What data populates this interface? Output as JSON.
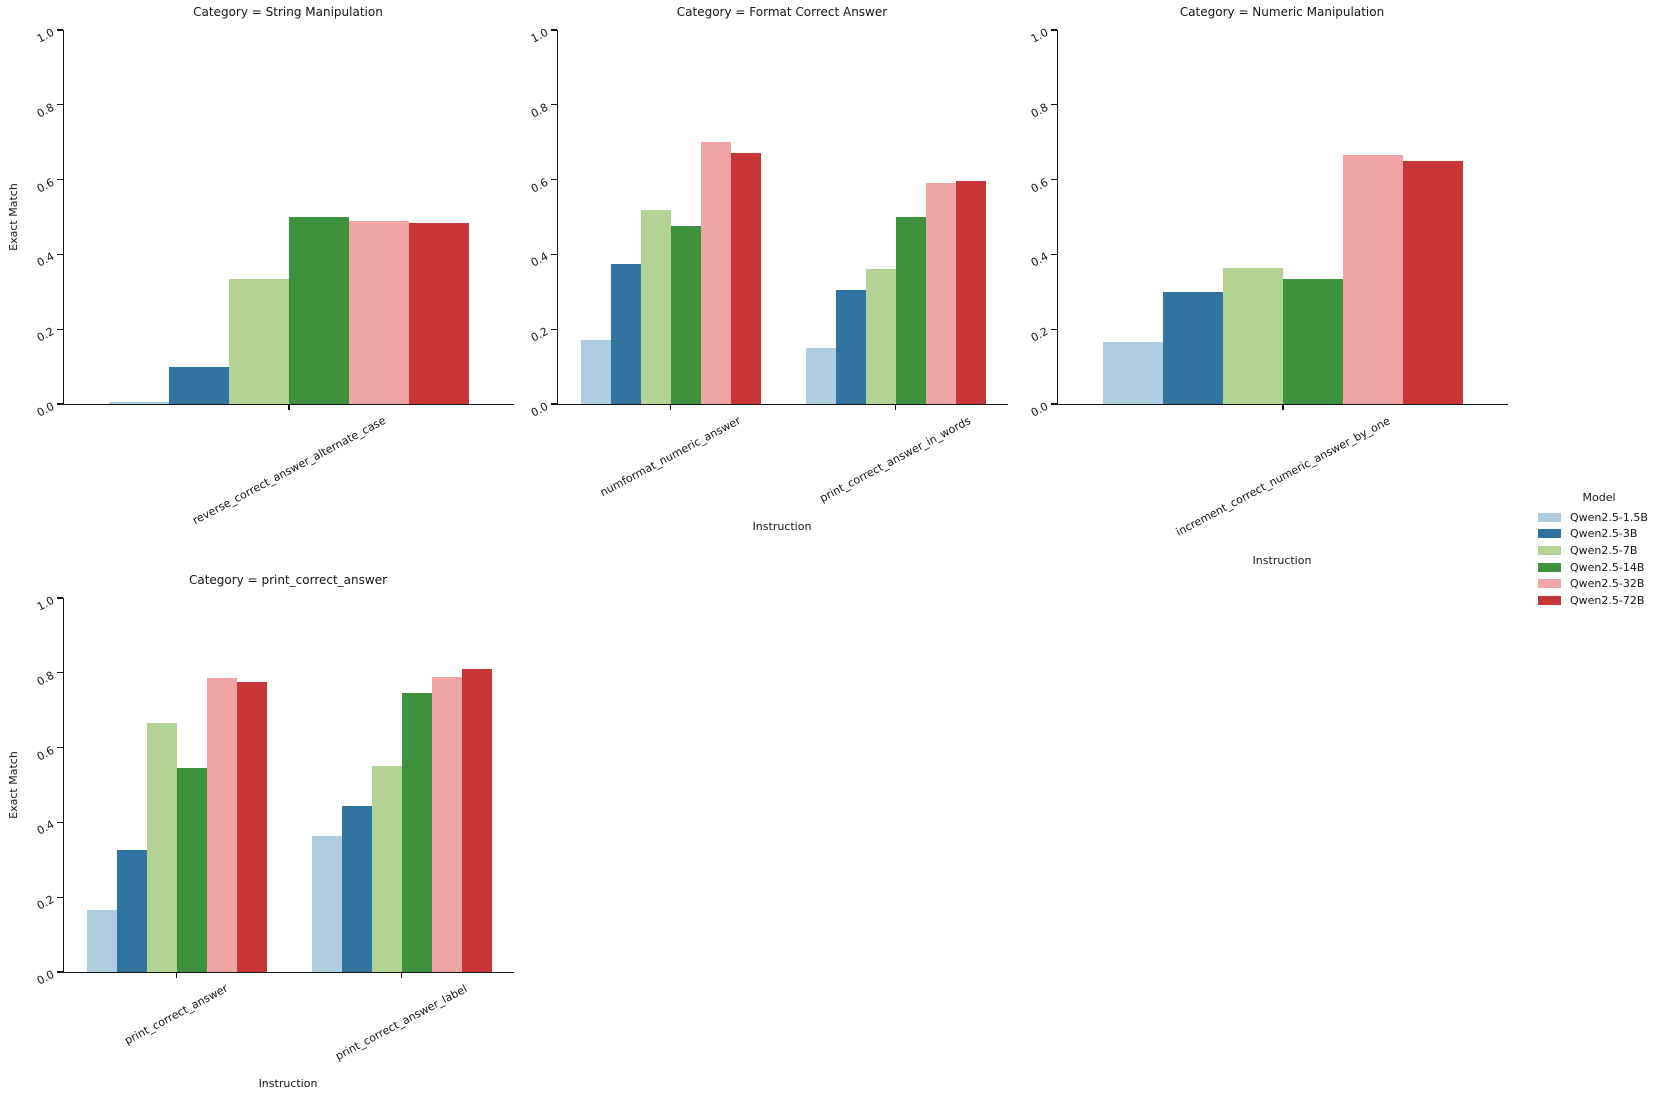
{
  "figure": {
    "ylabel": "Exact Match",
    "xlabel": "Instruction",
    "yticks": [
      "0.0",
      "0.2",
      "0.4",
      "0.6",
      "0.8",
      "1.0"
    ],
    "ylim": [
      0,
      1
    ]
  },
  "legend": {
    "title": "Model",
    "position": "right",
    "entries": [
      {
        "label": "Qwen2.5-1.5B",
        "color": "#aecde0"
      },
      {
        "label": "Qwen2.5-3B",
        "color": "#3274a1"
      },
      {
        "label": "Qwen2.5-7B",
        "color": "#b2d393"
      },
      {
        "label": "Qwen2.5-14B",
        "color": "#3f923d"
      },
      {
        "label": "Qwen2.5-32B",
        "color": "#f0a5a4"
      },
      {
        "label": "Qwen2.5-72B",
        "color": "#c93637"
      }
    ]
  },
  "chart_data": [
    {
      "type": "bar",
      "title": "Category = String Manipulation",
      "categories": [
        "reverse_correct_answer_alternate_case"
      ],
      "series": [
        {
          "name": "Qwen2.5-1.5B",
          "values": [
            0.005
          ]
        },
        {
          "name": "Qwen2.5-3B",
          "values": [
            0.1
          ]
        },
        {
          "name": "Qwen2.5-7B",
          "values": [
            0.335
          ]
        },
        {
          "name": "Qwen2.5-14B",
          "values": [
            0.5
          ]
        },
        {
          "name": "Qwen2.5-32B",
          "values": [
            0.49
          ]
        },
        {
          "name": "Qwen2.5-72B",
          "values": [
            0.485
          ]
        }
      ],
      "xlabel": "",
      "ylabel": "Exact Match",
      "ylim": [
        0,
        1
      ],
      "grid_lines": false,
      "grid": {
        "row": 0,
        "col": 0
      }
    },
    {
      "type": "bar",
      "title": "Category = Format Correct Answer",
      "categories": [
        "numformat_numeric_answer",
        "print_correct_answer_in_words"
      ],
      "series": [
        {
          "name": "Qwen2.5-1.5B",
          "values": [
            0.17,
            0.15
          ]
        },
        {
          "name": "Qwen2.5-3B",
          "values": [
            0.375,
            0.305
          ]
        },
        {
          "name": "Qwen2.5-7B",
          "values": [
            0.52,
            0.36
          ]
        },
        {
          "name": "Qwen2.5-14B",
          "values": [
            0.475,
            0.5
          ]
        },
        {
          "name": "Qwen2.5-32B",
          "values": [
            0.7,
            0.59
          ]
        },
        {
          "name": "Qwen2.5-72B",
          "values": [
            0.67,
            0.595
          ]
        }
      ],
      "xlabel": "Instruction",
      "ylabel": "",
      "ylim": [
        0,
        1
      ],
      "grid_lines": false,
      "grid": {
        "row": 0,
        "col": 1
      }
    },
    {
      "type": "bar",
      "title": "Category = Numeric Manipulation",
      "categories": [
        "increment_correct_numeric_answer_by_one"
      ],
      "series": [
        {
          "name": "Qwen2.5-1.5B",
          "values": [
            0.165
          ]
        },
        {
          "name": "Qwen2.5-3B",
          "values": [
            0.3
          ]
        },
        {
          "name": "Qwen2.5-7B",
          "values": [
            0.365
          ]
        },
        {
          "name": "Qwen2.5-14B",
          "values": [
            0.335
          ]
        },
        {
          "name": "Qwen2.5-32B",
          "values": [
            0.665
          ]
        },
        {
          "name": "Qwen2.5-72B",
          "values": [
            0.65
          ]
        }
      ],
      "xlabel": "Instruction",
      "ylabel": "",
      "ylim": [
        0,
        1
      ],
      "grid_lines": false,
      "grid": {
        "row": 0,
        "col": 2
      }
    },
    {
      "type": "bar",
      "title": "Category = print_correct_answer",
      "categories": [
        "print_correct_answer",
        "print_correct_answer_label"
      ],
      "series": [
        {
          "name": "Qwen2.5-1.5B",
          "values": [
            0.165,
            0.365
          ]
        },
        {
          "name": "Qwen2.5-3B",
          "values": [
            0.325,
            0.445
          ]
        },
        {
          "name": "Qwen2.5-7B",
          "values": [
            0.665,
            0.55
          ]
        },
        {
          "name": "Qwen2.5-14B",
          "values": [
            0.545,
            0.745
          ]
        },
        {
          "name": "Qwen2.5-32B",
          "values": [
            0.785,
            0.79
          ]
        },
        {
          "name": "Qwen2.5-72B",
          "values": [
            0.775,
            0.81
          ]
        }
      ],
      "xlabel": "Instruction",
      "ylabel": "Exact Match",
      "ylim": [
        0,
        1
      ],
      "grid_lines": false,
      "grid": {
        "row": 1,
        "col": 0
      }
    }
  ]
}
